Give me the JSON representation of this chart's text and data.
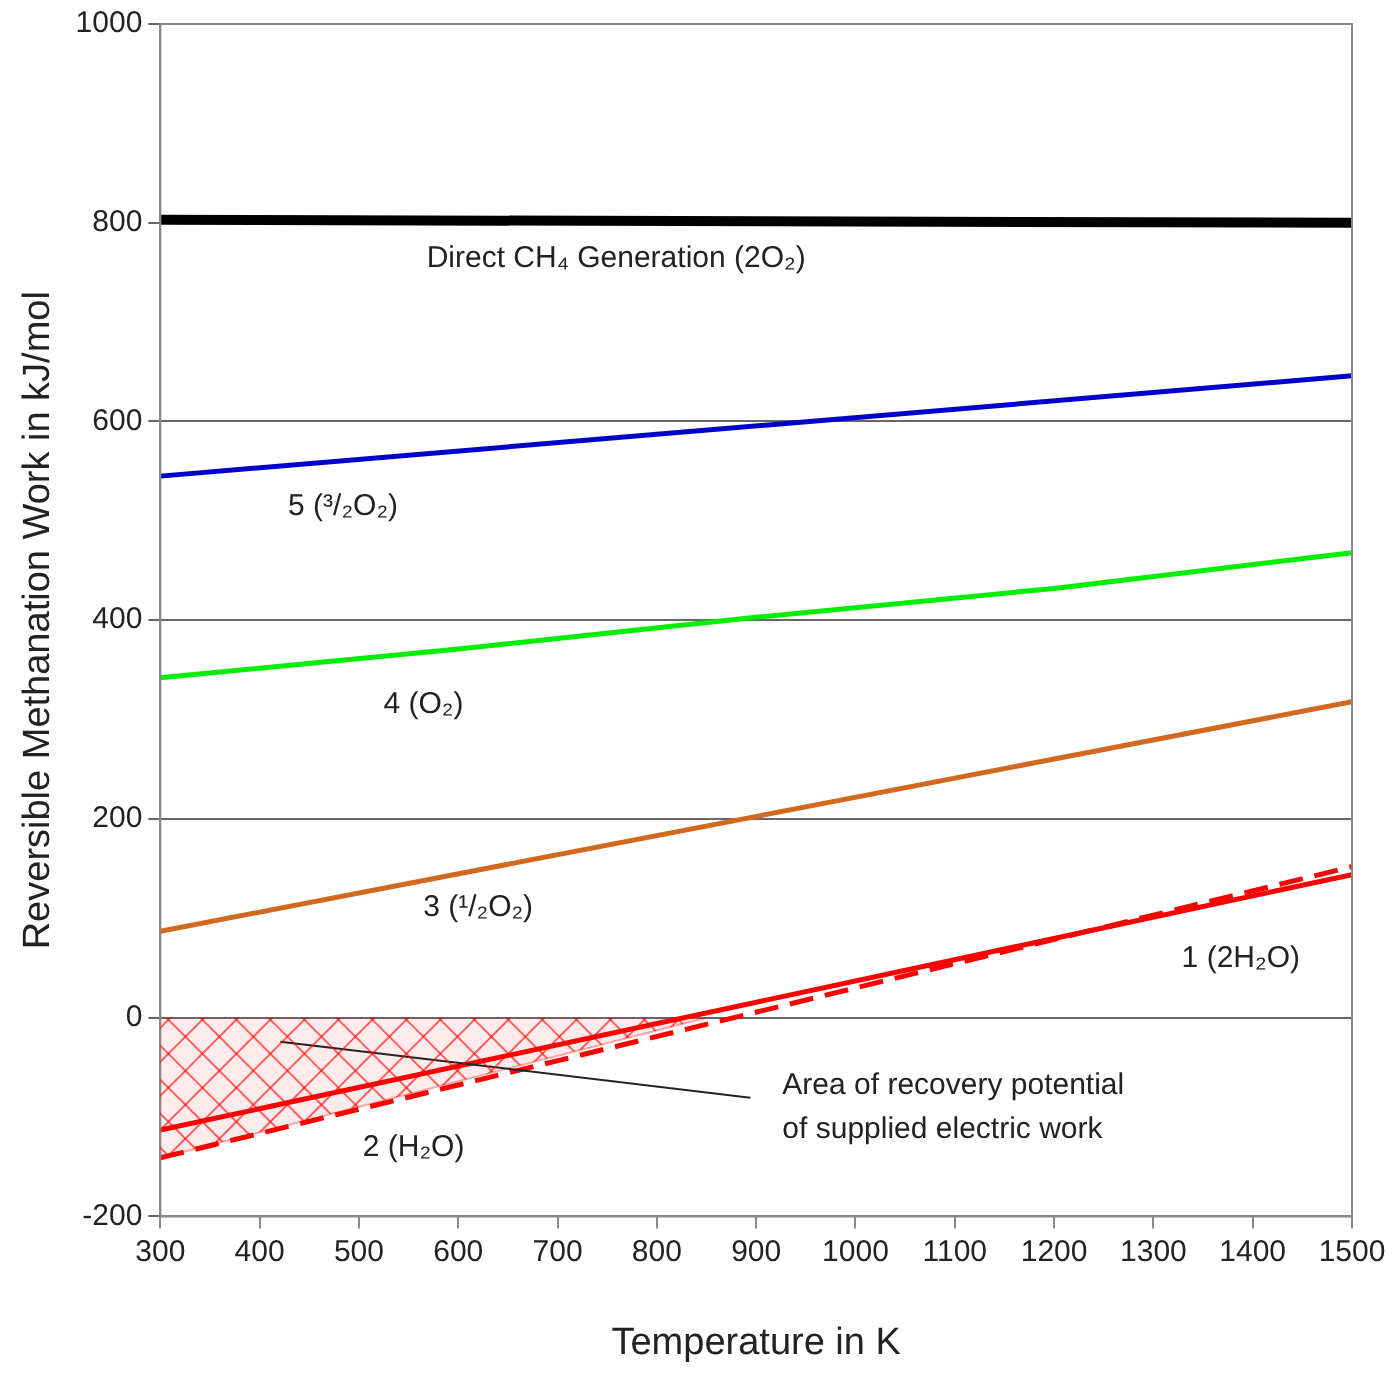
{
  "chart_data": {
    "type": "line",
    "xlabel": "Temperature in K",
    "ylabel": "Reversible Methanation Work in kJ/mol",
    "x": [
      300,
      1500
    ],
    "xlim": [
      300,
      1500
    ],
    "xticks": [
      300,
      400,
      500,
      600,
      700,
      800,
      900,
      1000,
      1100,
      1200,
      1300,
      1400,
      1500
    ],
    "ylim": [
      -200,
      1000
    ],
    "yticks": [
      -200,
      0,
      200,
      400,
      600,
      800,
      1000
    ],
    "grid": "y",
    "legend": false,
    "marker": "none",
    "series": [
      {
        "name": "Direct CH₄ Generation (2O₂)",
        "color": "#000000",
        "values": [
          803,
          800
        ]
      },
      {
        "name": "5 (³/₂O₂)",
        "color": "#0000cc",
        "values": [
          545,
          646
        ]
      },
      {
        "name": "4 (O₂)",
        "color": "#00ee00",
        "x": [
          300,
          600,
          900,
          1200,
          1500
        ],
        "values": [
          342,
          371,
          403,
          432,
          468
        ]
      },
      {
        "name": "3 (¹/₂O₂)",
        "color": "#d2691e",
        "values": [
          87,
          318
        ]
      },
      {
        "name": "1 (2H₂O)",
        "color": "#ff0000",
        "values": [
          -113,
          144
        ]
      },
      {
        "name": "2 (H₂O)",
        "color": "#ff0000",
        "line_style": "dashed",
        "values": [
          -141,
          152
        ]
      },
      {
        "type": "area",
        "color": "#ff0000",
        "x": [
          300,
          850
        ],
        "values": [
          -141,
          0
        ]
      }
    ],
    "annotations": [
      "Area of recovery potential\nof supplied electric work"
    ]
  }
}
